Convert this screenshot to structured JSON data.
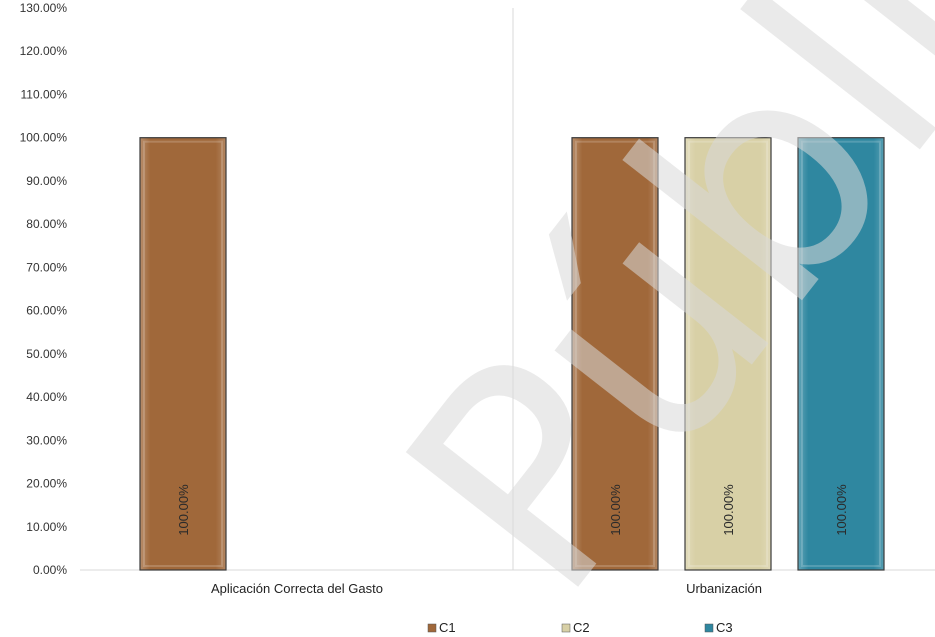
{
  "chart_data": {
    "type": "bar",
    "categories": [
      "Aplicación Correcta del Gasto",
      "Urbanización"
    ],
    "series": [
      {
        "name": "C1",
        "color": "#a0683a",
        "values": [
          100,
          100
        ],
        "labels": [
          "100.00%",
          "100.00%"
        ]
      },
      {
        "name": "C2",
        "color": "#d8d0a6",
        "values": [
          null,
          100
        ],
        "labels": [
          null,
          "100.00%"
        ]
      },
      {
        "name": "C3",
        "color": "#2f87a0",
        "values": [
          null,
          100
        ],
        "labels": [
          null,
          "100.00%"
        ]
      }
    ],
    "y_ticks": [
      "0.00%",
      "10.00%",
      "20.00%",
      "30.00%",
      "40.00%",
      "50.00%",
      "60.00%",
      "70.00%",
      "80.00%",
      "90.00%",
      "100.00%",
      "110.00%",
      "120.00%",
      "130.00%"
    ],
    "ylim": [
      0,
      130
    ],
    "grid": false,
    "legend_position": "bottom",
    "watermark": "Públic"
  }
}
